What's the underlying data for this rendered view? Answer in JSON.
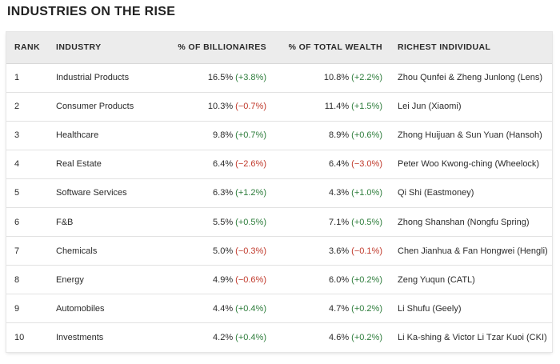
{
  "title": "INDUSTRIES ON THE RISE",
  "columns": {
    "rank": "RANK",
    "industry": "INDUSTRY",
    "pct_billionaires": "% OF BILLIONAIRES",
    "pct_wealth": "% OF TOTAL WEALTH",
    "richest": "RICHEST INDIVIDUAL"
  },
  "colors": {
    "positive": "#2e7d3c",
    "negative": "#c0392b",
    "header_bg": "#ececec"
  },
  "rows": [
    {
      "rank": "1",
      "industry": "Industrial Products",
      "pb_value": "16.5%",
      "pb_change": "(+3.8%)",
      "pb_dir": "pos",
      "tw_value": "10.8%",
      "tw_change": "(+2.2%)",
      "tw_dir": "pos",
      "richest": "Zhou Qunfei & Zheng Junlong (Lens)"
    },
    {
      "rank": "2",
      "industry": "Consumer Products",
      "pb_value": "10.3%",
      "pb_change": "(−0.7%)",
      "pb_dir": "neg",
      "tw_value": "11.4%",
      "tw_change": "(+1.5%)",
      "tw_dir": "pos",
      "richest": "Lei Jun (Xiaomi)"
    },
    {
      "rank": "3",
      "industry": "Healthcare",
      "pb_value": "9.8%",
      "pb_change": "(+0.7%)",
      "pb_dir": "pos",
      "tw_value": "8.9%",
      "tw_change": "(+0.6%)",
      "tw_dir": "pos",
      "richest": "Zhong Huijuan & Sun Yuan (Hansoh)"
    },
    {
      "rank": "4",
      "industry": "Real Estate",
      "pb_value": "6.4%",
      "pb_change": "(−2.6%)",
      "pb_dir": "neg",
      "tw_value": "6.4%",
      "tw_change": "(−3.0%)",
      "tw_dir": "neg",
      "richest": "Peter Woo Kwong-ching (Wheelock)"
    },
    {
      "rank": "5",
      "industry": "Software Services",
      "pb_value": "6.3%",
      "pb_change": "(+1.2%)",
      "pb_dir": "pos",
      "tw_value": "4.3%",
      "tw_change": "(+1.0%)",
      "tw_dir": "pos",
      "richest": "Qi Shi (Eastmoney)"
    },
    {
      "rank": "6",
      "industry": "F&B",
      "pb_value": "5.5%",
      "pb_change": "(+0.5%)",
      "pb_dir": "pos",
      "tw_value": "7.1%",
      "tw_change": "(+0.5%)",
      "tw_dir": "pos",
      "richest": "Zhong Shanshan (Nongfu Spring)"
    },
    {
      "rank": "7",
      "industry": "Chemicals",
      "pb_value": "5.0%",
      "pb_change": "(−0.3%)",
      "pb_dir": "neg",
      "tw_value": "3.6%",
      "tw_change": "(−0.1%)",
      "tw_dir": "neg",
      "richest": "Chen Jianhua & Fan Hongwei (Hengli)"
    },
    {
      "rank": "8",
      "industry": "Energy",
      "pb_value": "4.9%",
      "pb_change": "(−0.6%)",
      "pb_dir": "neg",
      "tw_value": "6.0%",
      "tw_change": "(+0.2%)",
      "tw_dir": "pos",
      "richest": "Zeng Yuqun (CATL)"
    },
    {
      "rank": "9",
      "industry": "Automobiles",
      "pb_value": "4.4%",
      "pb_change": "(+0.4%)",
      "pb_dir": "pos",
      "tw_value": "4.7%",
      "tw_change": "(+0.2%)",
      "tw_dir": "pos",
      "richest": "Li Shufu (Geely)"
    },
    {
      "rank": "10",
      "industry": "Investments",
      "pb_value": "4.2%",
      "pb_change": "(+0.4%)",
      "pb_dir": "pos",
      "tw_value": "4.6%",
      "tw_change": "(+0.2%)",
      "tw_dir": "pos",
      "richest": "Li Ka-shing & Victor Li Tzar Kuoi (CKI)"
    }
  ]
}
